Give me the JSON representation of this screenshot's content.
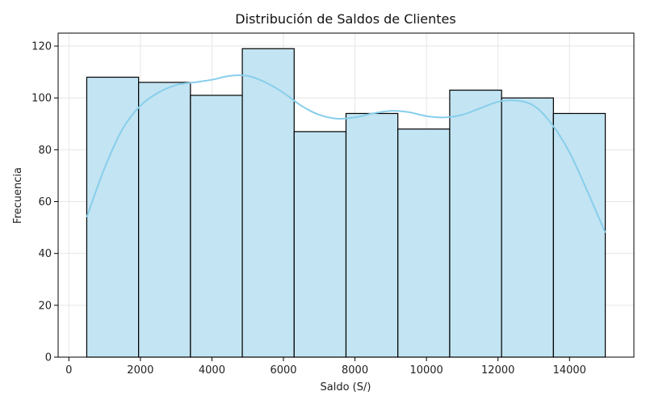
{
  "chart_data": {
    "type": "bar",
    "title": "Distribución de Saldos de Clientes",
    "xlabel": "Saldo (S/)",
    "ylabel": "Frecuencia",
    "xlim": [
      -300,
      15800
    ],
    "ylim": [
      0,
      125
    ],
    "x_ticks": [
      0,
      2000,
      4000,
      6000,
      8000,
      10000,
      12000,
      14000
    ],
    "y_ticks": [
      0,
      20,
      40,
      60,
      80,
      100,
      120
    ],
    "grid": true,
    "bins": [
      {
        "x0": 500,
        "x1": 1950,
        "value": 108
      },
      {
        "x0": 1950,
        "x1": 3400,
        "value": 106
      },
      {
        "x0": 3400,
        "x1": 4850,
        "value": 101
      },
      {
        "x0": 4850,
        "x1": 6300,
        "value": 119
      },
      {
        "x0": 6300,
        "x1": 7750,
        "value": 87
      },
      {
        "x0": 7750,
        "x1": 9200,
        "value": 94
      },
      {
        "x0": 9200,
        "x1": 10650,
        "value": 88
      },
      {
        "x0": 10650,
        "x1": 12100,
        "value": 103
      },
      {
        "x0": 12100,
        "x1": 13550,
        "value": 100
      },
      {
        "x0": 13550,
        "x1": 15000,
        "value": 94
      }
    ],
    "kde": {
      "x": [
        500,
        1000,
        1500,
        2000,
        2500,
        3000,
        3500,
        4000,
        4500,
        5000,
        5500,
        6000,
        6500,
        7000,
        7500,
        8000,
        8500,
        9000,
        9500,
        10000,
        10500,
        11000,
        11500,
        12000,
        12500,
        13000,
        13500,
        14000,
        14500,
        15000
      ],
      "y": [
        54,
        73,
        88,
        97,
        102,
        105,
        106,
        107,
        108.5,
        108.5,
        106,
        102,
        97,
        93.5,
        92,
        92.5,
        94,
        95,
        94.5,
        93,
        92.5,
        93.5,
        96,
        98.5,
        99,
        97,
        90,
        79,
        64,
        48
      ]
    },
    "colors": {
      "bar_fill": "#c3e4f2",
      "bar_edge": "#000000",
      "kde_line": "#87ceeb",
      "grid": "#e6e6e6"
    }
  }
}
